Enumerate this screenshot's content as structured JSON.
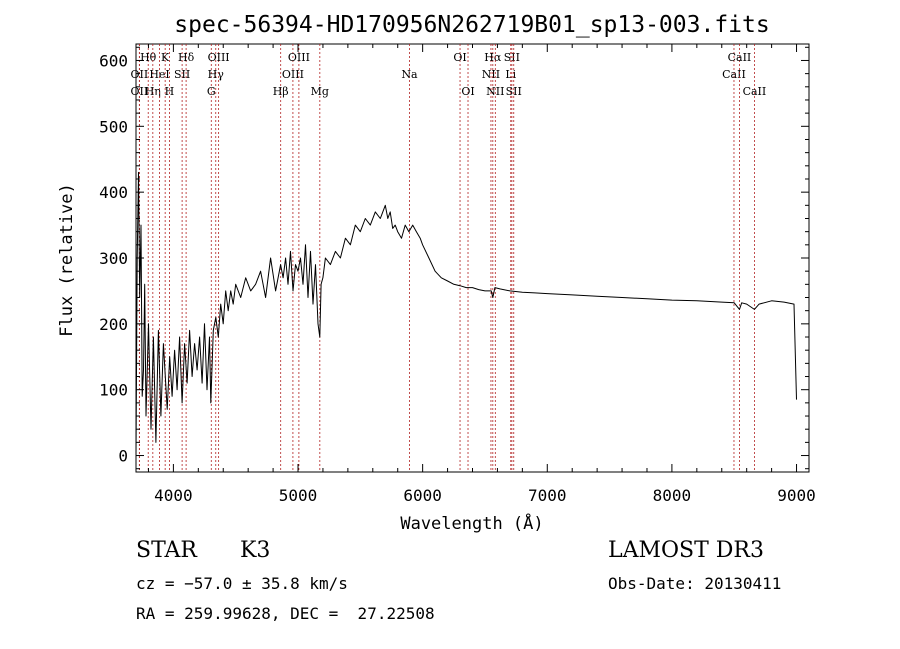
{
  "chart_data": {
    "type": "line",
    "title": "spec-56394-HD170956N262719B01_sp13-003.fits",
    "xlabel": "Wavelength (Å)",
    "ylabel": "Flux (relative)",
    "xlim": [
      3700,
      9100
    ],
    "ylim": [
      -25,
      625
    ],
    "xticks": [
      4000,
      5000,
      6000,
      7000,
      8000,
      9000
    ],
    "yticks": [
      0,
      100,
      200,
      300,
      400,
      500,
      600
    ],
    "grid": false,
    "line_color": "#000000",
    "marker_color": "#b22222",
    "series": [
      {
        "x": [
          3700,
          3710,
          3720,
          3730,
          3740,
          3750,
          3760,
          3770,
          3780,
          3800,
          3820,
          3840,
          3860,
          3880,
          3900,
          3920,
          3935,
          3950,
          3970,
          3990,
          4010,
          4030,
          4050,
          4070,
          4090,
          4110,
          4130,
          4150,
          4170,
          4190,
          4210,
          4230,
          4250,
          4270,
          4290,
          4300,
          4320,
          4340,
          4360,
          4380,
          4400,
          4420,
          4440,
          4460,
          4480,
          4500,
          4540,
          4580,
          4620,
          4660,
          4700,
          4740,
          4780,
          4820,
          4860,
          4880,
          4900,
          4920,
          4940,
          4960,
          4980,
          5000,
          5020,
          5040,
          5060,
          5080,
          5100,
          5120,
          5140,
          5160,
          5175,
          5185,
          5200,
          5220,
          5260,
          5300,
          5340,
          5380,
          5420,
          5460,
          5500,
          5540,
          5580,
          5620,
          5660,
          5700,
          5720,
          5740,
          5760,
          5780,
          5800,
          5830,
          5860,
          5890,
          5920,
          5950,
          5980,
          6000,
          6050,
          6100,
          6150,
          6200,
          6250,
          6300,
          6350,
          6400,
          6450,
          6500,
          6550,
          6563,
          6580,
          6620,
          6700,
          6800,
          6900,
          7000,
          7200,
          7400,
          7600,
          7800,
          8000,
          8200,
          8400,
          8500,
          8542,
          8560,
          8600,
          8662,
          8700,
          8800,
          8900,
          8980,
          9000
        ],
        "y": [
          0,
          300,
          430,
          240,
          350,
          90,
          130,
          260,
          60,
          200,
          40,
          180,
          20,
          190,
          60,
          170,
          120,
          70,
          150,
          90,
          160,
          100,
          180,
          80,
          170,
          110,
          190,
          120,
          170,
          130,
          180,
          110,
          200,
          100,
          180,
          80,
          190,
          210,
          180,
          230,
          200,
          250,
          220,
          250,
          230,
          260,
          240,
          270,
          250,
          260,
          280,
          240,
          300,
          250,
          290,
          270,
          300,
          260,
          310,
          250,
          290,
          280,
          300,
          260,
          320,
          240,
          310,
          230,
          290,
          200,
          180,
          260,
          270,
          300,
          290,
          310,
          300,
          330,
          320,
          350,
          340,
          360,
          350,
          370,
          360,
          380,
          360,
          370,
          345,
          350,
          340,
          330,
          350,
          340,
          350,
          340,
          330,
          320,
          300,
          280,
          270,
          265,
          260,
          258,
          255,
          255,
          252,
          250,
          250,
          240,
          255,
          253,
          250,
          248,
          247,
          246,
          244,
          242,
          240,
          238,
          236,
          235,
          233,
          232,
          222,
          232,
          230,
          222,
          230,
          235,
          233,
          230,
          85
        ]
      }
    ],
    "line_markers": [
      {
        "label": "OII",
        "x": 3727,
        "row": 2
      },
      {
        "label": "OII",
        "x": 3727,
        "row": 3
      },
      {
        "label": "Hθ",
        "x": 3798,
        "row": 1
      },
      {
        "label": "Hη",
        "x": 3835,
        "row": 3
      },
      {
        "label": "HeI",
        "x": 3889,
        "row": 2
      },
      {
        "label": "K",
        "x": 3934,
        "row": 1
      },
      {
        "label": "H",
        "x": 3968,
        "row": 3
      },
      {
        "label": "SII",
        "x": 4070,
        "row": 2
      },
      {
        "label": "Hδ",
        "x": 4102,
        "row": 1
      },
      {
        "label": "G",
        "x": 4304,
        "row": 3
      },
      {
        "label": "Hγ",
        "x": 4340,
        "row": 2
      },
      {
        "label": "OIII",
        "x": 4363,
        "row": 1
      },
      {
        "label": "Hβ",
        "x": 4861,
        "row": 3
      },
      {
        "label": "OIII",
        "x": 4959,
        "row": 2
      },
      {
        "label": "OIII",
        "x": 5007,
        "row": 1
      },
      {
        "label": "Mg",
        "x": 5175,
        "row": 3
      },
      {
        "label": "Na",
        "x": 5894,
        "row": 2
      },
      {
        "label": "OI",
        "x": 6300,
        "row": 1
      },
      {
        "label": "OI",
        "x": 6364,
        "row": 3
      },
      {
        "label": "NII",
        "x": 6548,
        "row": 2
      },
      {
        "label": "Hα",
        "x": 6563,
        "row": 1
      },
      {
        "label": "NII",
        "x": 6583,
        "row": 3
      },
      {
        "label": "Li",
        "x": 6707,
        "row": 2
      },
      {
        "label": "SII",
        "x": 6716,
        "row": 1
      },
      {
        "label": "SII",
        "x": 6731,
        "row": 3
      },
      {
        "label": "CaII",
        "x": 8498,
        "row": 2
      },
      {
        "label": "CaII",
        "x": 8542,
        "row": 1
      },
      {
        "label": "CaII",
        "x": 8662,
        "row": 3
      }
    ]
  },
  "info": {
    "class_label": "STAR",
    "subclass": "K3",
    "survey": "LAMOST DR3",
    "cz": "cz = −57.0 ± 35.8 km/s",
    "obs_date": "Obs-Date: 20130411",
    "coords": "RA = 259.99628, DEC =  27.22508"
  }
}
